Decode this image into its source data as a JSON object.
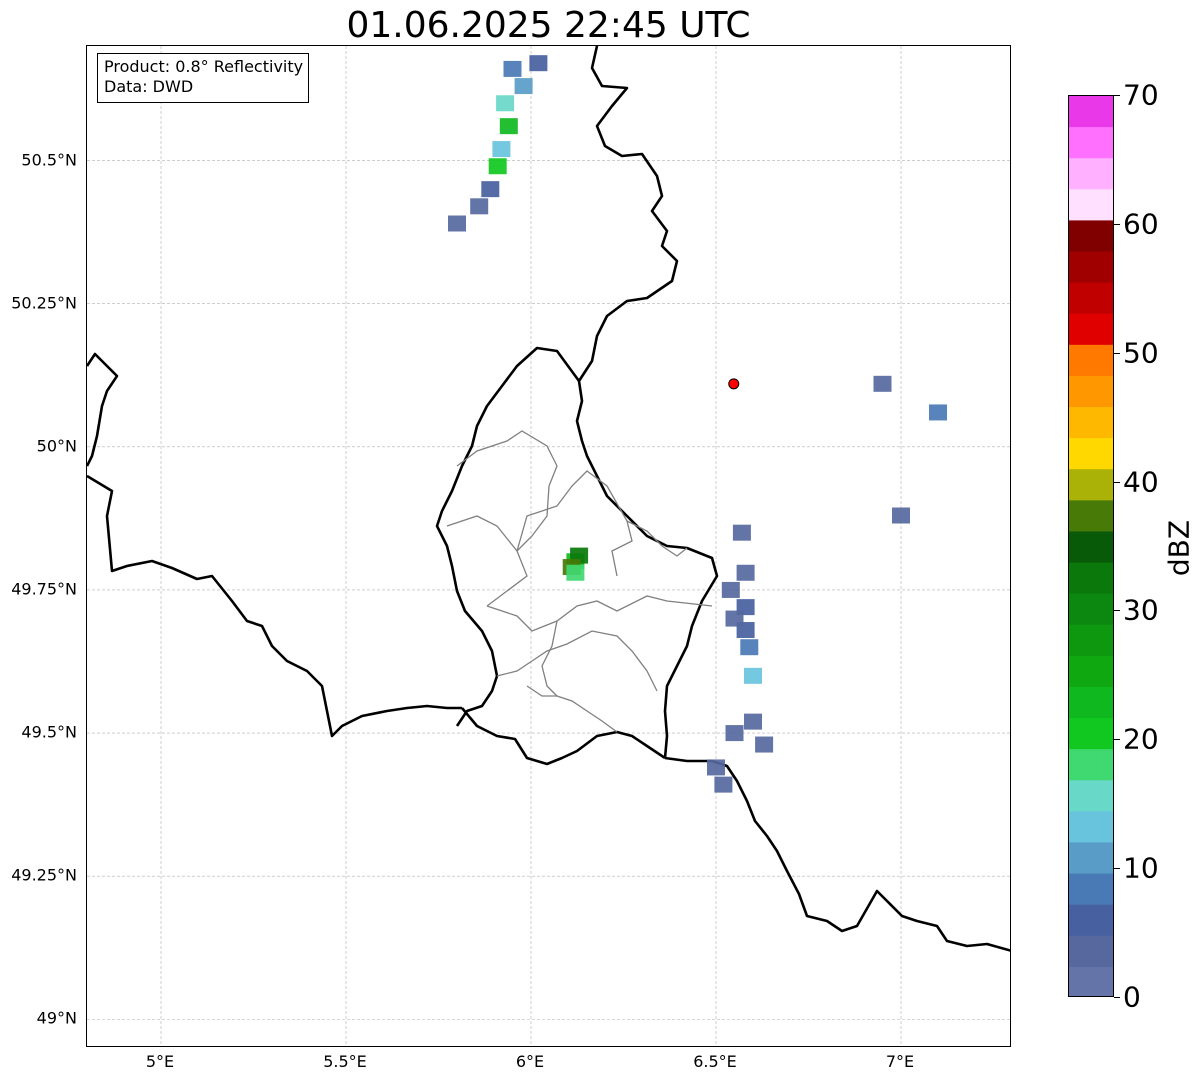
{
  "title": "01.06.2025 22:45 UTC",
  "info_box": {
    "product": "Product: 0.8° Reflectivity",
    "source": "Data: DWD"
  },
  "map": {
    "lon_range": [
      4.8,
      7.3
    ],
    "lat_range": [
      48.95,
      50.7
    ],
    "lat_ticks": [
      {
        "value": 49.0,
        "label": "49°N"
      },
      {
        "value": 49.25,
        "label": "49.25°N"
      },
      {
        "value": 49.5,
        "label": "49.5°N"
      },
      {
        "value": 49.75,
        "label": "49.75°N"
      },
      {
        "value": 50.0,
        "label": "50°N"
      },
      {
        "value": 50.25,
        "label": "50.25°N"
      },
      {
        "value": 50.5,
        "label": "50.5°N"
      }
    ],
    "lon_ticks": [
      {
        "value": 5.0,
        "label": "5°E"
      },
      {
        "value": 5.5,
        "label": "5.5°E"
      },
      {
        "value": 6.0,
        "label": "6°E"
      },
      {
        "value": 6.5,
        "label": "6.5°E"
      },
      {
        "value": 7.0,
        "label": "7°E"
      }
    ],
    "grid": true,
    "radar_site": {
      "lon": 6.548,
      "lat": 50.11,
      "color": "#ff0000"
    },
    "country_borders_color": "#000000",
    "province_borders_color": "#808080",
    "echo_cells": [
      {
        "lon": 5.95,
        "lat": 50.66,
        "dbz": 8
      },
      {
        "lon": 5.98,
        "lat": 50.63,
        "dbz": 12
      },
      {
        "lon": 5.93,
        "lat": 50.6,
        "dbz": 16
      },
      {
        "lon": 5.94,
        "lat": 50.56,
        "dbz": 22
      },
      {
        "lon": 5.92,
        "lat": 50.52,
        "dbz": 14
      },
      {
        "lon": 5.91,
        "lat": 50.49,
        "dbz": 20
      },
      {
        "lon": 5.89,
        "lat": 50.45,
        "dbz": 6
      },
      {
        "lon": 5.86,
        "lat": 50.42,
        "dbz": 4
      },
      {
        "lon": 5.8,
        "lat": 50.39,
        "dbz": 4
      },
      {
        "lon": 6.02,
        "lat": 50.67,
        "dbz": 6
      },
      {
        "lon": 6.12,
        "lat": 49.8,
        "dbz": 22
      },
      {
        "lon": 6.13,
        "lat": 49.81,
        "dbz": 32
      },
      {
        "lon": 6.11,
        "lat": 49.79,
        "dbz": 38
      },
      {
        "lon": 6.12,
        "lat": 49.78,
        "dbz": 18
      },
      {
        "lon": 6.58,
        "lat": 49.72,
        "dbz": 6
      },
      {
        "lon": 6.58,
        "lat": 49.68,
        "dbz": 6
      },
      {
        "lon": 6.59,
        "lat": 49.65,
        "dbz": 8
      },
      {
        "lon": 6.6,
        "lat": 49.6,
        "dbz": 14
      },
      {
        "lon": 6.55,
        "lat": 49.7,
        "dbz": 4
      },
      {
        "lon": 6.6,
        "lat": 49.52,
        "dbz": 4
      },
      {
        "lon": 6.63,
        "lat": 49.48,
        "dbz": 4
      },
      {
        "lon": 6.54,
        "lat": 49.75,
        "dbz": 4
      },
      {
        "lon": 6.58,
        "lat": 49.78,
        "dbz": 4
      },
      {
        "lon": 6.5,
        "lat": 49.44,
        "dbz": 4
      },
      {
        "lon": 6.52,
        "lat": 49.41,
        "dbz": 4
      },
      {
        "lon": 6.55,
        "lat": 49.5,
        "dbz": 4
      },
      {
        "lon": 6.57,
        "lat": 49.85,
        "dbz": 4
      },
      {
        "lon": 6.95,
        "lat": 50.11,
        "dbz": 4
      },
      {
        "lon": 7.1,
        "lat": 50.06,
        "dbz": 8
      },
      {
        "lon": 7.0,
        "lat": 49.88,
        "dbz": 4
      }
    ]
  },
  "colorbar": {
    "label": "dBZ",
    "min": 0,
    "max": 70,
    "ticks": [
      "0",
      "10",
      "20",
      "30",
      "40",
      "50",
      "60",
      "70"
    ],
    "colors": [
      "#6474a8",
      "#56689e",
      "#4760a0",
      "#4a7ab5",
      "#5a9cc8",
      "#68c3dc",
      "#68d8c8",
      "#40d870",
      "#10c820",
      "#10b820",
      "#10a810",
      "#0e9810",
      "#0c8810",
      "#0a780a",
      "#085a08",
      "#487a08",
      "#aab208",
      "#ffd800",
      "#ffb800",
      "#ff9800",
      "#ff7800",
      "#e00000",
      "#c00000",
      "#a00000",
      "#800000",
      "#ffe0ff",
      "#ffb0ff",
      "#ff70ff",
      "#e838e8"
    ]
  }
}
